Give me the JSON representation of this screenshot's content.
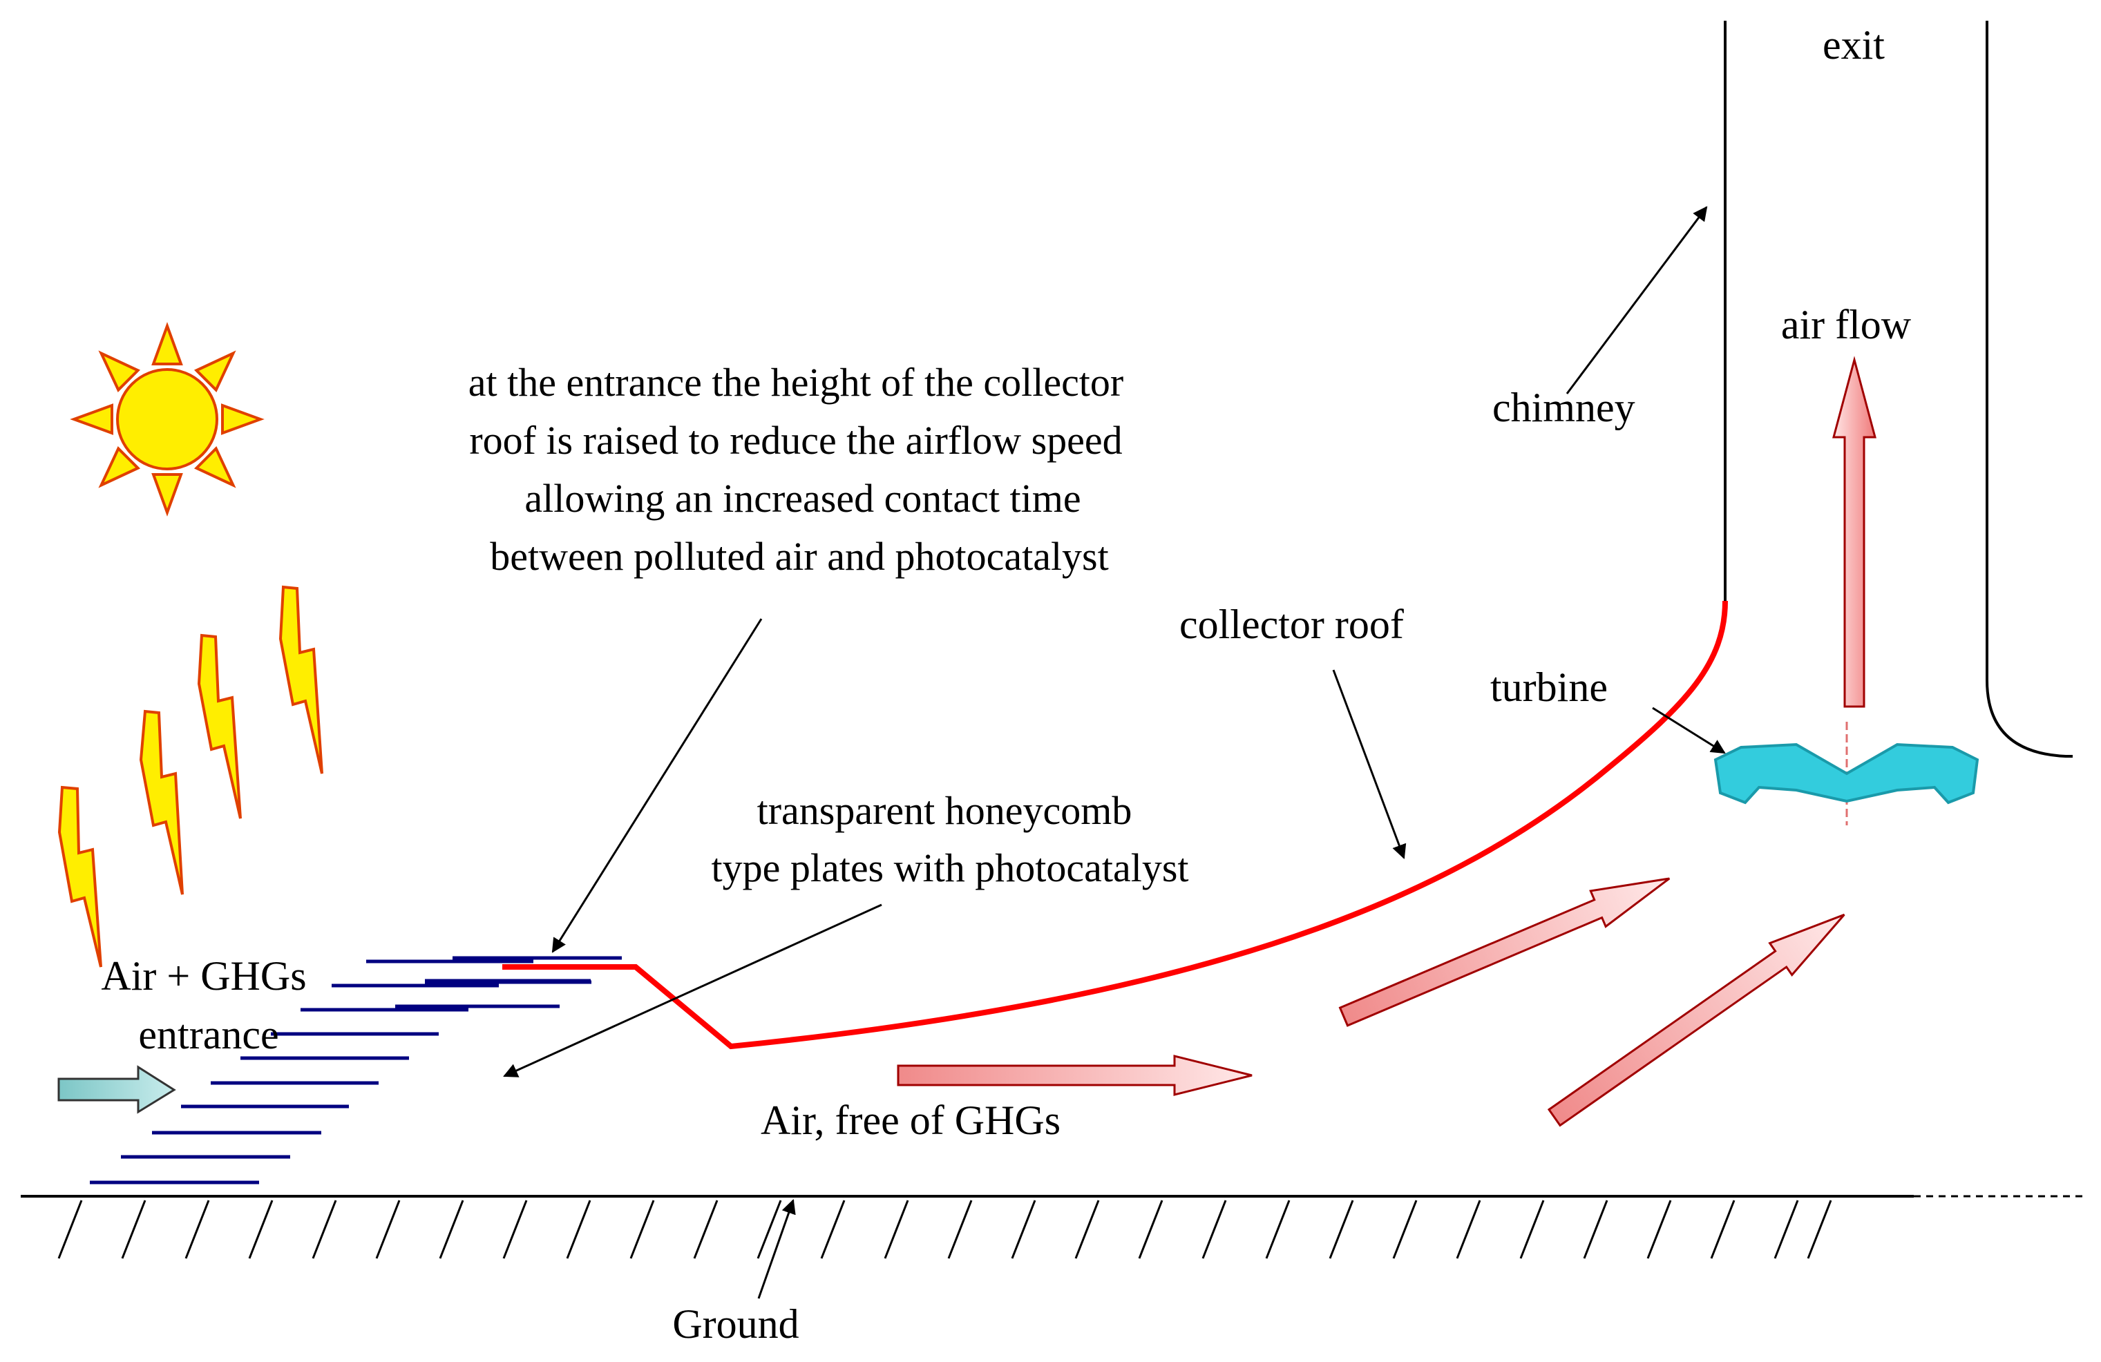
{
  "labels": {
    "exit": "exit",
    "air_flow": "air flow",
    "chimney": "chimney",
    "collector_roof": "collector roof",
    "turbine": "turbine",
    "entrance_note": [
      "at the entrance the height of the collector",
      "roof is raised to reduce the airflow speed",
      "allowing an increased contact time",
      "between polluted air and photocatalyst"
    ],
    "honeycomb": [
      "transparent honeycomb",
      "type plates with photocatalyst"
    ],
    "air_ghg": "Air + GHGs",
    "entrance": "entrance",
    "air_free": "Air, free of GHGs",
    "ground": "Ground"
  },
  "colors": {
    "roof": "#ff0000",
    "plates": "#000080",
    "sun": "#ffee00",
    "sun_outline": "#e04000",
    "arrow_fill": "#f7b0b0",
    "arrow_outline": "#a00000",
    "inlet_arrow": "#9fd4d4",
    "turbine": "#33ccdd"
  },
  "icons": [
    "sun-icon",
    "lightning-icon",
    "turbine-icon",
    "flow-arrow-icon"
  ]
}
